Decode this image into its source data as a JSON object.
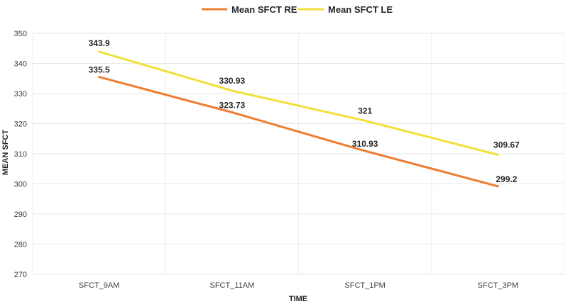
{
  "chart_data": {
    "type": "line",
    "title": "",
    "categories": [
      "SFCT_9AM",
      "SFCT_11AM",
      "SFCT_1PM",
      "SFCT_3PM"
    ],
    "series": [
      {
        "name": "Mean SFCT RE",
        "values": [
          335.5,
          323.73,
          310.93,
          299.2
        ],
        "labels": [
          "335.5",
          "323.73",
          "310.93",
          "299.2"
        ],
        "color": "#ED7D31"
      },
      {
        "name": "Mean SFCT LE",
        "values": [
          343.9,
          330.93,
          321,
          309.67
        ],
        "labels": [
          "343.9",
          "330.93",
          "321",
          "309.67"
        ],
        "color": "#F2E03A"
      }
    ],
    "xlabel": "TIME",
    "ylabel": "MEAN SFCT",
    "ylim": [
      270,
      350
    ],
    "yticks": [
      270,
      280,
      290,
      300,
      310,
      320,
      330,
      340,
      350
    ],
    "grid": true,
    "legend": "top-center"
  }
}
